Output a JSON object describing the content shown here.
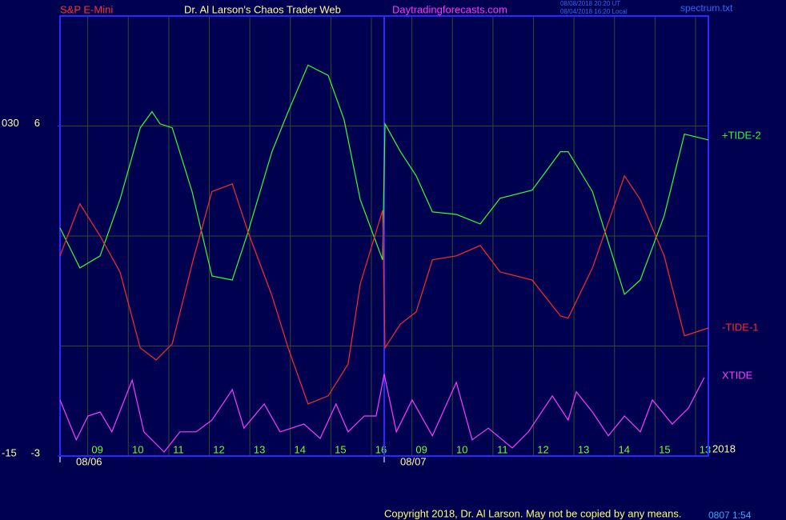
{
  "chart_data": {
    "type": "line",
    "header": [
      "S&P E-Mini",
      "Dr. Al Larson's Chaos Trader Web",
      "Daytradingforecasts.com"
    ],
    "timestamps": [
      "08/08/2018 20:20 UT",
      "08/04/2018 16:20 Local"
    ],
    "file": "spectrum.txt",
    "copyright": "Copyright 2018, Dr. Al Larson. May not be copied by any means.",
    "year": "2018",
    "corner": "0807 1:54",
    "dates": [
      {
        "value": 0,
        "label": "08/06"
      },
      {
        "value": 8,
        "label": "08/07"
      }
    ],
    "xlim": [
      0,
      16
    ],
    "xticks": [
      {
        "value": 1,
        "label": "09"
      },
      {
        "value": 2,
        "label": "10"
      },
      {
        "value": 3,
        "label": "11"
      },
      {
        "value": 4,
        "label": "12"
      },
      {
        "value": 5,
        "label": "13"
      },
      {
        "value": 6,
        "label": "14"
      },
      {
        "value": 7,
        "label": "15"
      },
      {
        "value": 8,
        "label": "16"
      },
      {
        "value": 9,
        "label": "09"
      },
      {
        "value": 10,
        "label": "10"
      },
      {
        "value": 11,
        "label": "11"
      },
      {
        "value": 12,
        "label": "12"
      },
      {
        "value": 13,
        "label": "13"
      },
      {
        "value": 14,
        "label": "14"
      },
      {
        "value": 15,
        "label": "15"
      },
      {
        "value": 16,
        "label": "13"
      }
    ],
    "ylim": [
      -3,
      9
    ],
    "yticks": [
      -3,
      6
    ],
    "y2lim": [
      -15,
      45
    ],
    "y2ticks": [
      -15,
      {
        "value": 30,
        "label": "030"
      }
    ],
    "grid_y": [
      0,
      3,
      6
    ],
    "grid": true,
    "series": [
      {
        "name": "+TIDE-2",
        "color": "#33ff33",
        "x": [
          0,
          0.49,
          0.99,
          1.48,
          1.98,
          2.27,
          2.47,
          2.77,
          3.26,
          3.75,
          4.25,
          4.64,
          5.23,
          5.63,
          6.12,
          6.62,
          7.01,
          7.41,
          7.96,
          8.02,
          8.4,
          8.79,
          9.19,
          9.78,
          10.37,
          10.86,
          11.65,
          12.35,
          12.54,
          13.14,
          13.93,
          14.32,
          14.91,
          15.41,
          16
        ],
        "values": [
          3.22,
          2.13,
          2.46,
          3.99,
          5.95,
          6.39,
          6.06,
          5.95,
          4.21,
          1.91,
          1.8,
          3.11,
          5.3,
          6.39,
          7.66,
          7.38,
          6.17,
          3.99,
          2.35,
          6.06,
          5.3,
          4.64,
          3.66,
          3.59,
          3.33,
          4.03,
          4.25,
          5.3,
          5.3,
          4.21,
          1.41,
          1.8,
          3.55,
          5.78,
          5.62
        ]
      },
      {
        "name": "-TIDE-1",
        "color": "#ff2a2a",
        "x": [
          0,
          0.49,
          0.99,
          1.48,
          1.98,
          2.37,
          2.77,
          3.26,
          3.75,
          4.25,
          4.64,
          5.23,
          5.63,
          6.12,
          6.62,
          7.11,
          7.41,
          7.96,
          8.02,
          8.4,
          8.79,
          9.19,
          9.78,
          10.37,
          10.86,
          11.65,
          12.35,
          12.54,
          13.14,
          13.93,
          14.32,
          14.91,
          15.41,
          16
        ],
        "values": [
          2.46,
          3.88,
          3.0,
          2.02,
          -0.05,
          -0.38,
          0.06,
          2.24,
          4.21,
          4.42,
          3.11,
          1.37,
          -0.05,
          -1.58,
          -1.36,
          -0.49,
          1.69,
          3.7,
          -0.05,
          0.6,
          0.93,
          2.35,
          2.46,
          2.74,
          2.02,
          1.8,
          0.82,
          0.76,
          2.13,
          4.64,
          3.99,
          2.46,
          0.28,
          0.49
        ]
      },
      {
        "name": "XTIDE",
        "color": "#ff3cff",
        "x": [
          0,
          0.4,
          0.69,
          0.99,
          1.28,
          1.78,
          2.07,
          2.57,
          2.96,
          3.36,
          3.75,
          4.25,
          4.54,
          5.04,
          5.43,
          6.02,
          6.42,
          6.81,
          7.11,
          7.51,
          7.8,
          8.0,
          8.3,
          8.69,
          9.19,
          9.78,
          10.17,
          10.57,
          11.16,
          11.56,
          12.15,
          12.54,
          12.74,
          13.14,
          13.53,
          13.93,
          14.32,
          14.62,
          15.11,
          15.51,
          15.9
        ],
        "values": [
          -1.47,
          -2.56,
          -1.91,
          -1.8,
          -2.34,
          -0.93,
          -2.34,
          -2.89,
          -2.34,
          -2.34,
          -2.02,
          -1.19,
          -2.24,
          -1.58,
          -2.34,
          -2.13,
          -2.52,
          -1.58,
          -2.34,
          -1.91,
          -1.91,
          -0.77,
          -2.34,
          -1.47,
          -2.45,
          -0.99,
          -2.56,
          -2.24,
          -2.78,
          -2.34,
          -1.36,
          -2.02,
          -1.25,
          -1.8,
          -2.45,
          -1.91,
          -2.34,
          -1.47,
          -2.13,
          -1.69,
          -0.86
        ]
      }
    ]
  }
}
